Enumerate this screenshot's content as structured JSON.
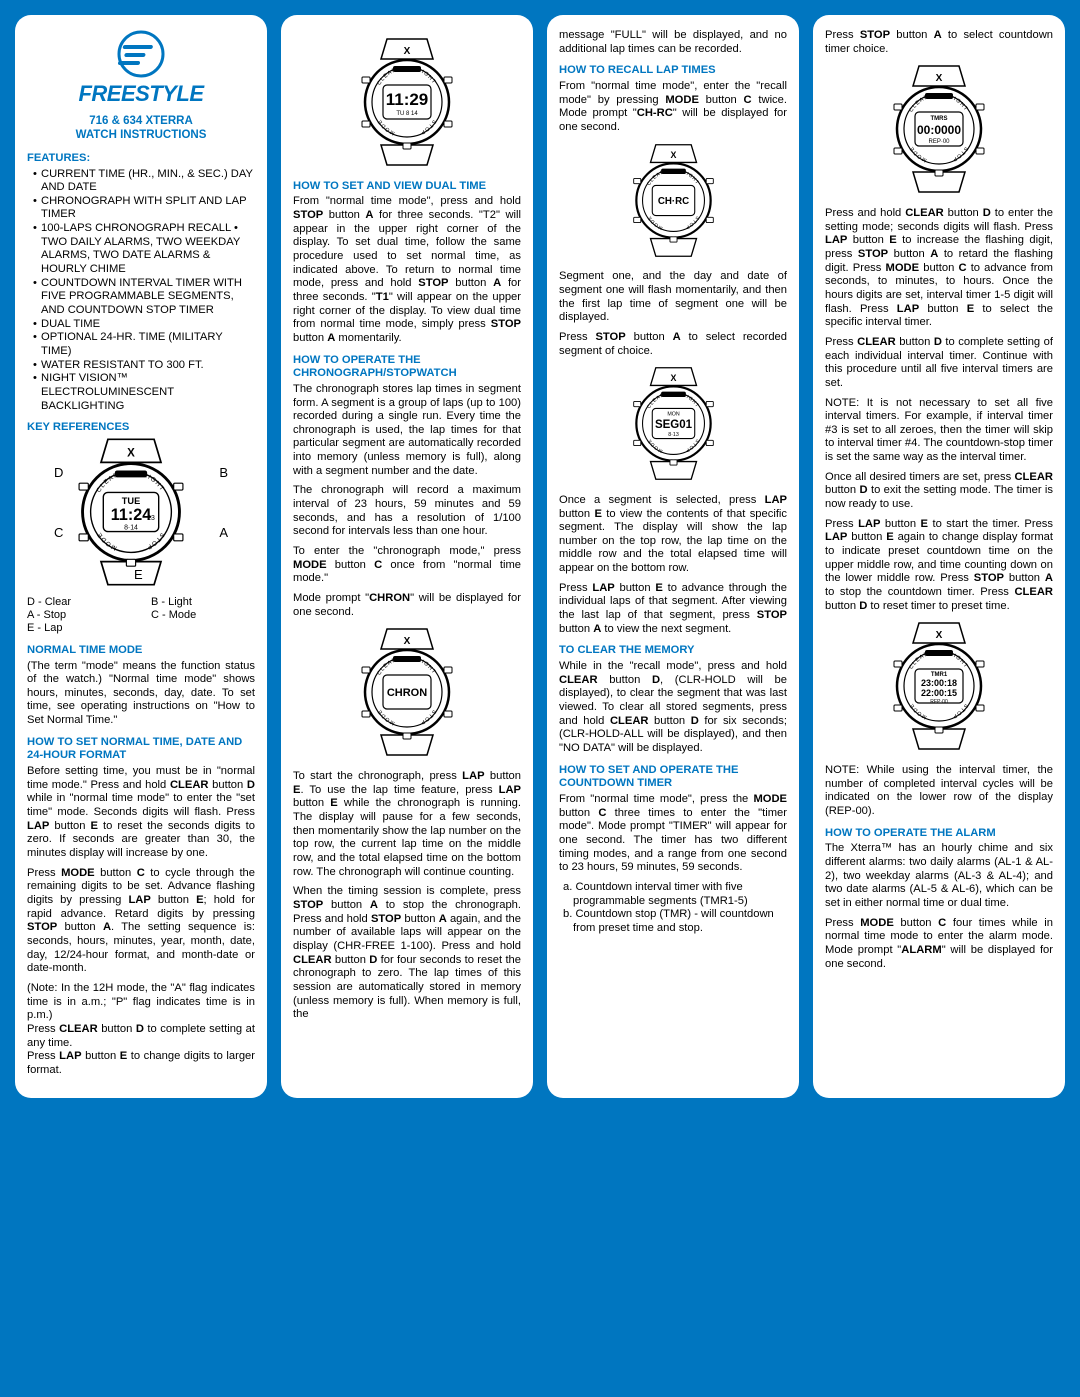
{
  "brand": "FREESTYLE",
  "title1": "716 & 634 XTERRA",
  "title2": "WATCH INSTRUCTIONS",
  "col1": {
    "features_h": "FEATURES:",
    "features": [
      "CURRENT TIME (HR., MIN., & SEC.) DAY AND DATE",
      "CHRONOGRAPH WITH SPLIT AND LAP TIMER",
      "100-LAPS CHRONOGRAPH RECALL • TWO DAILY ALARMS, TWO WEEKDAY ALARMS, TWO DATE ALARMS & HOURLY CHIME",
      "COUNTDOWN INTERVAL TIMER WITH FIVE PROGRAMMABLE SEGMENTS, AND COUNTDOWN STOP TIMER",
      "DUAL TIME",
      "OPTIONAL 24-HR. TIME (MILITARY TIME)",
      "WATER RESISTANT TO 300 FT.",
      "NIGHT VISION™ ELECTROLUMINESCENT BACKLIGHTING"
    ],
    "keyref_h": "KEY REFERENCES",
    "keyD": "D",
    "keyB": "B",
    "keyC": "C",
    "keyA": "A",
    "keyE": "E",
    "leg1a": "D - Clear",
    "leg1b": "A - Stop",
    "leg1c": "E - Lap",
    "leg2a": "B - Light",
    "leg2b": "C - Mode",
    "normal_h": "NORMAL TIME MODE",
    "normal_p": "(The term \"mode\" means the function status of the watch.) \"Normal time mode\" shows hours, minutes, seconds, day, date. To set time, see operating instructions on \"How to Set Normal Time.\"",
    "setnorm_h": "HOW TO SET NORMAL TIME, DATE AND 24-HOUR FORMAT",
    "setnorm_p1a": "Before setting time, you must be in \"normal time mode.\" Press and hold ",
    "setnorm_p1b": " button ",
    "setnorm_p1c": " while in \"normal time mode\" to enter the \"set time\" mode. Seconds digits will flash. Press ",
    "setnorm_p1d": " button ",
    "setnorm_p1e": " to reset the seconds digits to zero. If seconds are greater than 30, the minutes display will increase by one.",
    "setnorm_p2a": "Press ",
    "setnorm_p2b": " button ",
    "setnorm_p2c": " to cycle through the remaining digits to be set. Advance flashing digits by pressing ",
    "setnorm_p2d": " button ",
    "setnorm_p2e": "; hold for rapid advance. Retard digits by pressing ",
    "setnorm_p2f": " button ",
    "setnorm_p2g": ". The setting sequence is: seconds, hours, minutes, year, month, date, day, 12/24-hour format, and month-date or date-month.",
    "setnorm_note": "(Note: In the 12H mode, the \"A\" flag indicates time is in a.m.; \"P\" flag indicates time is in p.m.)",
    "setnorm_p3a": "Press ",
    "setnorm_p3b": " button ",
    "setnorm_p3c": " to complete setting at any time.",
    "setnorm_p4a": "Press ",
    "setnorm_p4b": " button ",
    "setnorm_p4c": " to change digits to larger format."
  },
  "col2": {
    "watch1_display": "11:29",
    "watch1_sub": "TU 8 14",
    "dual_h": "HOW TO SET AND VIEW DUAL TIME",
    "dual_p1": "From \"normal time mode\", press and hold STOP button A for three seconds. \"T2\" will appear in the upper right corner of the display. To set dual time, follow the same procedure used to set normal time, as indicated above. To return to normal time mode, press and hold STOP button A for three seconds. \"T1\" will appear on the upper right corner of the display. To view dual time from normal time mode, simply press STOP button A momentarily.",
    "chrono_h": "HOW TO OPERATE THE CHRONOGRAPH/STOPWATCH",
    "chrono_p1": "The chronograph stores lap times in segment form. A segment is a group of laps (up to 100) recorded during a single run. Every time the chronograph is used, the lap times for that particular segment are automatically recorded into memory (unless memory is full), along with a segment number and the date.",
    "chrono_p2": "The chronograph will record a maximum interval of 23 hours, 59 minutes and 59 seconds, and has a resolution of 1/100 second for intervals less than one hour.",
    "chrono_p3": "To enter the \"chronograph mode,\" press MODE button C once from \"normal time mode.\"",
    "chrono_p4": "Mode prompt \"CHRON\" will be displayed for one second.",
    "watch2_display": "CHRON",
    "chrono_p5": "To start the chronograph, press LAP button E. To use the lap time feature, press LAP button E while the chronograph is running. The display will pause for a few seconds, then momentarily show the lap number on the top row, the current lap time on the middle row, and the total elapsed time on the bottom row. The chronograph will continue counting.",
    "chrono_p6": "When the timing session is complete, press STOP button A to stop the chronograph. Press and hold STOP button A again, and the number of available laps will appear on the display (CHR-FREE 1-100). Press and hold CLEAR button D for four seconds to reset the chronograph to zero. The lap times of this session are automatically stored in memory (unless memory is full). When memory is full, the"
  },
  "col3": {
    "top_p": "message \"FULL\" will be displayed, and no additional lap times can be recorded.",
    "recall_h": "HOW TO RECALL LAP TIMES",
    "recall_p": "From \"normal time mode\", enter the \"recall mode\" by pressing MODE button C twice. Mode prompt \"CH-RC\" will be displayed for one second.",
    "watch3_display": "CH·RC",
    "recall_p2": "Segment one, and the day and date of segment one will flash momentarily, and then the first lap time of segment one will be displayed.",
    "recall_p3": "Press STOP button A to select recorded segment of choice.",
    "watch4_top": "MON",
    "watch4_display": "SEG01",
    "watch4_sub": "8·13",
    "recall_p4": "Once a segment is selected, press LAP button E to view the contents of that specific segment. The display will show the lap number on the top row, the lap time on the middle row and the total elapsed time will appear on the bottom row.",
    "recall_p5": "Press LAP button E to advance through the individual laps of that segment. After viewing the last lap of that segment, press STOP button A to view the next segment.",
    "clear_h": "TO CLEAR THE MEMORY",
    "clear_p": "While in the \"recall mode\", press and hold CLEAR button D, (CLR-HOLD will be displayed), to clear the segment that was last viewed. To clear all stored segments, press and hold CLEAR button D for six seconds; (CLR-HOLD-ALL will be displayed), and then \"NO DATA\" will be displayed.",
    "cd_h": "HOW TO SET AND OPERATE THE COUNTDOWN TIMER",
    "cd_p1": "From \"normal time mode\", press the MODE button C three times to enter the \"timer mode\". Mode prompt \"TIMER\" will appear for one second. The timer has two different timing modes, and a range from one second to 23 hours, 59 minutes, 59 seconds.",
    "cd_a": "a. Countdown interval timer with five programmable segments (TMR1-5)",
    "cd_b": "b. Countdown stop (TMR) - will countdown from preset time and stop."
  },
  "col4": {
    "top_p": "Press STOP button A to select countdown timer choice.",
    "watch5_top": "TMRS",
    "watch5_display": "00:0000",
    "watch5_sub": "REP·00",
    "p2": "Press and hold CLEAR button D to enter the setting mode; seconds digits will flash. Press LAP button E to increase the flashing digit, press STOP button A to retard the flashing digit. Press MODE button C to advance from seconds, to minutes, to hours. Once the hours digits are set, interval timer 1-5 digit will flash. Press LAP button E to select the specific interval timer.",
    "p3": "Press CLEAR button D to complete setting of each individual interval timer. Continue with this procedure until all five interval timers are set.",
    "p4": "NOTE: It is not necessary to set all five interval timers. For example, if interval timer #3 is set to all zeroes, then the timer will skip to interval timer #4. The countdown-stop timer is set the same way as the interval timer.",
    "p5": "Once all desired timers are set, press CLEAR button D to exit the setting mode. The timer is now ready to use.",
    "p6": "Press LAP button E to start the timer. Press LAP button E again to change display format to indicate preset countdown time on the upper middle row, and time counting down on the lower middle row. Press STOP button A to stop the countdown timer. Press CLEAR button D to reset timer to preset time.",
    "watch6_top": "TMR1",
    "watch6_l1": "23:00:18",
    "watch6_l2": "22:00:15",
    "watch6_sub": "REP·00",
    "p7": "NOTE: While using the interval timer, the number of completed interval cycles will be indicated on the lower row of the display (REP-00).",
    "alarm_h": "HOW TO OPERATE THE ALARM",
    "alarm_p1": "The Xterra™ has an hourly chime and six different alarms: two daily alarms (AL-1 & AL-2), two weekday alarms (AL-3 & AL-4); and two date alarms (AL-5 & AL-6), which can be set in either normal time or dual time.",
    "alarm_p2": "Press MODE button C four times while in normal time mode to enter the alarm mode. Mode prompt \"ALARM\" will be displayed for one second."
  },
  "watch_labels": {
    "clear": "CLEAR",
    "light": "LIGHT",
    "mode": "MODE",
    "stop": "STOP",
    "xtop": "X"
  },
  "colors": {
    "bg": "#0076c0",
    "accent": "#0076c0",
    "panel": "#ffffff",
    "text": "#000000"
  }
}
